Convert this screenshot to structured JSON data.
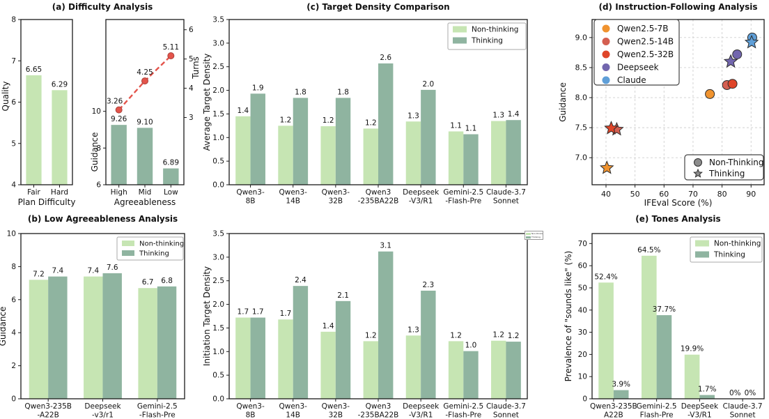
{
  "palette": {
    "axis": "#1a1a1a",
    "grid": "#cfcfcf",
    "non_thinking": "#c6e5b3",
    "thinking": "#8fb4a0",
    "turns_line": "#e4544b",
    "turns_edge": "#a8423b",
    "qwen7b": "#f0932f",
    "qwen14b": "#d45f51",
    "qwen32b": "#df4529",
    "deepseek": "#7266ae",
    "claude": "#5f9fd8",
    "marker_edge": "#2d2d2d",
    "legend_marker": "#8c8c8c"
  },
  "chart_data": [
    {
      "id": "quality",
      "panel_title": "(a) Difficulty Analysis",
      "type": "bar",
      "ylabel": "Quality",
      "xlabel": "Plan Difficulty",
      "ylim": [
        4,
        8
      ],
      "yticks": {
        "values": [
          4,
          5,
          6,
          7,
          8
        ],
        "labels": [
          "4",
          "5",
          "6",
          "7",
          "8"
        ]
      },
      "categories": [
        [
          "Fair"
        ],
        [
          "Hard"
        ]
      ],
      "series": [
        {
          "name": "Quality",
          "color": "non_thinking",
          "values": [
            6.65,
            6.29
          ],
          "value_labels": [
            "6.65",
            "6.29"
          ]
        }
      ]
    },
    {
      "id": "agreeableness",
      "type": "bar",
      "ylabel": "Guidance",
      "xlabel": "Agreeableness",
      "ylim": [
        6,
        15
      ],
      "yticks": {
        "values": [
          6,
          8,
          10
        ],
        "labels": [
          "6",
          "8",
          "10"
        ]
      },
      "y2label": "Turns",
      "y2lim": [
        0.7,
        6.35
      ],
      "y2ticks": {
        "values": [
          3,
          4,
          5,
          6
        ],
        "labels": [
          "3",
          "4",
          "5",
          "6"
        ]
      },
      "categories": [
        [
          "High"
        ],
        [
          "Mid"
        ],
        [
          "Low"
        ]
      ],
      "series": [
        {
          "name": "Guidance",
          "color": "thinking",
          "values": [
            9.26,
            9.1,
            6.89
          ],
          "value_labels": [
            "9.26",
            "9.10",
            "6.89"
          ]
        }
      ],
      "line": {
        "name": "Turns",
        "color": "turns_line",
        "edge": "turns_edge",
        "values": [
          3.26,
          4.25,
          5.11
        ],
        "value_labels": [
          "3.26",
          "4.25",
          "5.11"
        ]
      }
    },
    {
      "id": "low_agreeableness",
      "panel_title": "(b) Low Agreeableness Analysis",
      "type": "bar",
      "ylabel": "Guidance",
      "ylim": [
        0,
        10
      ],
      "yticks": {
        "values": [
          0,
          2,
          4,
          6,
          8,
          10
        ],
        "labels": [
          "0",
          "2",
          "4",
          "6",
          "8",
          "10"
        ]
      },
      "categories": [
        [
          "Qwen3-235B",
          "-A22B"
        ],
        [
          "Deepseek",
          "-v3/r1"
        ],
        [
          "Gemini-2.5",
          "-Flash-Pre"
        ]
      ],
      "legend": true,
      "series": [
        {
          "name": "Non-thinking",
          "color": "non_thinking",
          "values": [
            7.2,
            7.4,
            6.7
          ],
          "value_labels": [
            "7.2",
            "7.4",
            "6.7"
          ]
        },
        {
          "name": "Thinking",
          "color": "thinking",
          "values": [
            7.4,
            7.6,
            6.8
          ],
          "value_labels": [
            "7.4",
            "7.6",
            "6.8"
          ]
        }
      ]
    },
    {
      "id": "avg_target_density",
      "panel_title": "(c) Target Density Comparison",
      "type": "bar",
      "ylabel": "Average Target Density",
      "ylim": [
        0,
        3.5
      ],
      "yticks": {
        "values": [
          0,
          0.5,
          1,
          1.5,
          2,
          2.5,
          3,
          3.5
        ],
        "labels": [
          "0.0",
          "0.5",
          "1.0",
          "1.5",
          "2.0",
          "2.5",
          "3.0",
          "3.5"
        ]
      },
      "categories": [
        [
          "Qwen3-",
          "8B"
        ],
        [
          "Qwen3-",
          "14B"
        ],
        [
          "Qwen3-",
          "32B"
        ],
        [
          "Qwen3",
          "-235BA22B"
        ],
        [
          "Deepseek",
          "-V3/R1"
        ],
        [
          "Gemini-2.5",
          "-Flash-Pre"
        ],
        [
          "Claude-3.7",
          "Sonnet"
        ]
      ],
      "legend": true,
      "series": [
        {
          "name": "Non-thinking",
          "color": "non_thinking",
          "values": [
            1.45,
            1.25,
            1.24,
            1.19,
            1.34,
            1.13,
            1.35
          ],
          "value_labels": [
            "1.4",
            "1.2",
            "1.2",
            "1.2",
            "1.3",
            "1.1",
            "1.3"
          ]
        },
        {
          "name": "Thinking",
          "color": "thinking",
          "values": [
            1.93,
            1.84,
            1.84,
            2.57,
            2.01,
            1.07,
            1.37
          ],
          "value_labels": [
            "1.9",
            "1.8",
            "1.8",
            "2.6",
            "2.0",
            "1.1",
            "1.4"
          ]
        }
      ]
    },
    {
      "id": "init_target_density",
      "type": "bar",
      "ylabel": "Initiation Target Density",
      "ylim": [
        0,
        3.5
      ],
      "yticks": {
        "values": [
          0,
          0.5,
          1,
          1.5,
          2,
          2.5,
          3,
          3.5
        ],
        "labels": [
          "0.0",
          "0.5",
          "1.0",
          "1.5",
          "2.0",
          "2.5",
          "3.0",
          "3.5"
        ]
      },
      "categories": [
        [
          "Qwen3-",
          "8B"
        ],
        [
          "Qwen3-",
          "14B"
        ],
        [
          "Qwen3-",
          "32B"
        ],
        [
          "Qwen3",
          "-235BA22B"
        ],
        [
          "Deepseek",
          "-V3/R1"
        ],
        [
          "Gemini-2.5",
          "-Flash-Pre"
        ],
        [
          "Claude-3.7",
          "Sonnet"
        ]
      ],
      "mini_legend": {
        "items": [
          "Non-thinking",
          "Thinking"
        ]
      },
      "series": [
        {
          "name": "Non-thinking",
          "color": "non_thinking",
          "values": [
            1.72,
            1.68,
            1.42,
            1.22,
            1.34,
            1.22,
            1.23
          ],
          "value_labels": [
            "1.7",
            "1.7",
            "1.4",
            "1.2",
            "1.3",
            "1.2",
            "1.2"
          ]
        },
        {
          "name": "Thinking",
          "color": "thinking",
          "values": [
            1.72,
            2.39,
            2.07,
            3.12,
            2.29,
            1.01,
            1.21
          ],
          "value_labels": [
            "1.7",
            "2.4",
            "2.1",
            "3.1",
            "2.3",
            "1.0",
            "1.2"
          ]
        }
      ]
    },
    {
      "id": "ifeval",
      "panel_title": "(d) Instruction-Following Analysis",
      "type": "scatter",
      "xlabel": "IFEval Score (%)",
      "ylabel": "Guidance",
      "xlim": [
        35.2,
        94.5
      ],
      "xticks": {
        "values": [
          40,
          50,
          60,
          70,
          80,
          90
        ],
        "labels": [
          "40",
          "50",
          "60",
          "70",
          "80",
          "90"
        ]
      },
      "ylim": [
        6.55,
        9.3
      ],
      "yticks": {
        "values": [
          7.0,
          7.5,
          8.0,
          8.5,
          9.0
        ],
        "labels": [
          "7.0",
          "7.5",
          "8.0",
          "8.5",
          "9.0"
        ]
      },
      "grid": true,
      "series": [
        {
          "name": "Qwen2.5-7B",
          "color": "qwen7b",
          "points": [
            {
              "x": 75.8,
              "y": 8.06,
              "marker": "circle"
            },
            {
              "x": 40.3,
              "y": 6.83,
              "marker": "star"
            }
          ]
        },
        {
          "name": "Qwen2.5-14B",
          "color": "qwen14b",
          "points": [
            {
              "x": 81.7,
              "y": 8.21,
              "marker": "circle"
            },
            {
              "x": 43.7,
              "y": 7.47,
              "marker": "star"
            }
          ]
        },
        {
          "name": "Qwen2.5-32B",
          "color": "qwen32b",
          "points": [
            {
              "x": 83.6,
              "y": 8.23,
              "marker": "circle"
            },
            {
              "x": 41.8,
              "y": 7.49,
              "marker": "star"
            }
          ]
        },
        {
          "name": "Deepseek",
          "color": "deepseek",
          "points": [
            {
              "x": 85.2,
              "y": 8.72,
              "marker": "circle"
            },
            {
              "x": 83.0,
              "y": 8.6,
              "marker": "star"
            }
          ]
        },
        {
          "name": "Claude",
          "color": "claude",
          "points": [
            {
              "x": 90.4,
              "y": 9.0,
              "marker": "circle"
            },
            {
              "x": 90.2,
              "y": 8.92,
              "marker": "star"
            }
          ]
        }
      ],
      "marker_legend": [
        {
          "label": "Non-Thinking",
          "marker": "circle"
        },
        {
          "label": "Thinking",
          "marker": "star"
        }
      ]
    },
    {
      "id": "tones",
      "panel_title": "(e) Tones Analysis",
      "type": "bar",
      "ylabel": "Prevalence of \"sounds like\" (%)",
      "ylim": [
        0,
        74.5
      ],
      "yticks": {
        "values": [
          0,
          10,
          20,
          30,
          40,
          50,
          60,
          70
        ],
        "labels": [
          "0",
          "10",
          "20",
          "30",
          "40",
          "50",
          "60",
          "70"
        ]
      },
      "categories": [
        [
          "Qwen3-235B",
          "A22B"
        ],
        [
          "Gemini-2.5",
          "Flash-Pre"
        ],
        [
          "DeepSeek",
          "-V3/R1"
        ],
        [
          "Claude-3.7",
          "Sonnet"
        ]
      ],
      "legend": true,
      "series": [
        {
          "name": "Non-thinking",
          "color": "non_thinking",
          "values": [
            52.4,
            64.5,
            19.9,
            0
          ],
          "value_labels": [
            "52.4%",
            "64.5%",
            "19.9%",
            "0%"
          ]
        },
        {
          "name": "Thinking",
          "color": "thinking",
          "values": [
            3.9,
            37.7,
            1.7,
            0
          ],
          "value_labels": [
            "3.9%",
            "37.7%",
            "1.7%",
            "0%"
          ]
        }
      ]
    }
  ]
}
